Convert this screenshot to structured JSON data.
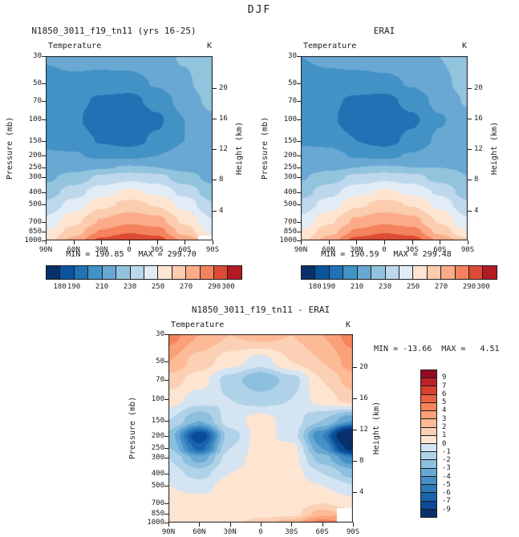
{
  "season": "DJF",
  "chart_data": [
    {
      "type": "heatmap",
      "panel": "model",
      "title": "N1850_3011_f19_tn11 (yrs 16-25)",
      "field_label": "Temperature",
      "units": "K",
      "ylabel_left": "Pressure (mb)",
      "ylabel_right": "Height (km)",
      "x_ticklabels": [
        "90N",
        "60N",
        "30N",
        "0",
        "30S",
        "60S",
        "90S"
      ],
      "pressure_levels": [
        30,
        50,
        70,
        100,
        150,
        200,
        250,
        300,
        400,
        500,
        700,
        850,
        1000
      ],
      "height_ticks_km": [
        20,
        16,
        12,
        8,
        4
      ],
      "min": 190.85,
      "max": 299.7,
      "minmax_text": "MIN = 190.85   MAX = 299.70",
      "contour_levels": [
        180,
        190,
        200,
        210,
        220,
        230,
        240,
        250,
        260,
        270,
        280,
        290,
        300
      ],
      "colorbar_ticklabels": [
        "180",
        "190",
        "210",
        "230",
        "250",
        "270",
        "290",
        "300"
      ],
      "colors": [
        "#08306b",
        "#0a549e",
        "#2171b5",
        "#4292c6",
        "#69a8d3",
        "#93c4de",
        "#bdd7ec",
        "#e1ecf7",
        "#fde5d2",
        "#fcccae",
        "#fcab89",
        "#f4835d",
        "#dc4b33",
        "#b21a24"
      ],
      "values": [
        [
          211,
          213,
          214,
          215,
          217,
          221,
          229
        ],
        [
          207,
          208,
          206,
          206,
          211,
          218,
          227
        ],
        [
          205,
          203,
          198,
          196,
          204,
          214,
          223
        ],
        [
          205,
          202,
          193,
          190.9,
          198,
          210,
          218
        ],
        [
          208,
          206,
          199,
          196,
          202,
          210,
          215
        ],
        [
          211,
          211,
          208,
          208,
          210,
          214,
          215
        ],
        [
          214,
          216,
          219,
          221,
          220,
          217,
          214
        ],
        [
          218,
          224,
          232,
          237,
          234,
          224,
          217
        ],
        [
          225,
          235,
          246,
          252,
          248,
          237,
          224
        ],
        [
          232,
          244,
          257,
          263,
          259,
          246,
          231
        ],
        [
          243,
          257,
          271,
          278,
          274,
          258,
          241
        ],
        [
          250,
          265,
          281,
          289,
          285,
          266,
          246
        ],
        [
          256,
          273,
          293,
          299.7,
          295,
          277,
          null
        ]
      ]
    },
    {
      "type": "heatmap",
      "panel": "reanalysis",
      "title": "ERAI",
      "field_label": "Temperature",
      "units": "K",
      "ylabel_left": "Pressure (mb)",
      "ylabel_right": "Height (km)",
      "x_ticklabels": [
        "90N",
        "60N",
        "30N",
        "0",
        "30S",
        "60S",
        "90S"
      ],
      "pressure_levels": [
        30,
        50,
        70,
        100,
        150,
        200,
        250,
        300,
        400,
        500,
        700,
        850,
        1000
      ],
      "height_ticks_km": [
        20,
        16,
        12,
        8,
        4
      ],
      "min": 190.59,
      "max": 299.48,
      "minmax_text": "MIN = 190.59   MAX = 299.48",
      "contour_levels": [
        180,
        190,
        200,
        210,
        220,
        230,
        240,
        250,
        260,
        270,
        280,
        290,
        300
      ],
      "colorbar_ticklabels": [
        "180",
        "190",
        "210",
        "230",
        "250",
        "270",
        "290",
        "300"
      ],
      "colors": [
        "#08306b",
        "#0a549e",
        "#2171b5",
        "#4292c6",
        "#69a8d3",
        "#93c4de",
        "#bdd7ec",
        "#e1ecf7",
        "#fde5d2",
        "#fcccae",
        "#fcab89",
        "#f4835d",
        "#dc4b33",
        "#b21a24"
      ],
      "values": [
        [
          210,
          212,
          214,
          216,
          217,
          220,
          226
        ],
        [
          206,
          207,
          206,
          207,
          211,
          217,
          224
        ],
        [
          204,
          202,
          198,
          196,
          204,
          213,
          221
        ],
        [
          204,
          202,
          193,
          190.6,
          198,
          209,
          217
        ],
        [
          209,
          208,
          200,
          196,
          203,
          212,
          217
        ],
        [
          213,
          213,
          209,
          208,
          211,
          217,
          219
        ],
        [
          216,
          218,
          220,
          221,
          220,
          220,
          219
        ],
        [
          219,
          225,
          233,
          237,
          234,
          226,
          220
        ],
        [
          226,
          236,
          247,
          252,
          248,
          238,
          225
        ],
        [
          233,
          245,
          258,
          263,
          259,
          247,
          232
        ],
        [
          244,
          258,
          272,
          278,
          274,
          259,
          242
        ],
        [
          251,
          266,
          282,
          289,
          285,
          267,
          250
        ],
        [
          257,
          274,
          294,
          299.5,
          295,
          278,
          262
        ]
      ]
    },
    {
      "type": "heatmap",
      "panel": "difference",
      "title": "N1850_3011_f19_tn11 - ERAI",
      "field_label": "Temperature",
      "units": "K",
      "ylabel_left": "Pressure (mb)",
      "ylabel_right": "Height (km)",
      "x_ticklabels": [
        "90N",
        "60N",
        "30N",
        "0",
        "30S",
        "60S",
        "90S"
      ],
      "pressure_levels": [
        30,
        50,
        70,
        100,
        150,
        200,
        250,
        300,
        400,
        500,
        700,
        850,
        1000
      ],
      "height_ticks_km": [
        20,
        16,
        12,
        8,
        4
      ],
      "min": -13.66,
      "max": 4.51,
      "minmax_text": "MIN = -13.66  MAX =   4.51",
      "contour_levels": [
        -9,
        -7,
        -6,
        -5,
        -4,
        -3,
        -2,
        -1,
        0,
        1,
        2,
        3,
        4,
        5,
        6,
        7,
        9
      ],
      "colorbar_ticklabels": [
        "9",
        "7",
        "6",
        "5",
        "4",
        "3",
        "2",
        "1",
        "0",
        "-1",
        "-2",
        "-3",
        "-4",
        "-5",
        "-6",
        "-7",
        "-9"
      ],
      "colors": [
        "#08306b",
        "#0a4b97",
        "#1a63ad",
        "#2e7bbc",
        "#4591c7",
        "#68a9d3",
        "#8dbfdf",
        "#b0d2e8",
        "#d4e4f2",
        "#fde5d2",
        "#fcd0b4",
        "#fcba96",
        "#fba179",
        "#f6835c",
        "#ea6243",
        "#d73f2f",
        "#bc2127",
        "#920c22"
      ],
      "values": [
        [
          4.5,
          3,
          2,
          2.5,
          2,
          3,
          4.5
        ],
        [
          3,
          1.5,
          0.5,
          -0.5,
          1,
          2,
          3.5
        ],
        [
          1.5,
          0.5,
          -1.5,
          -3,
          -1.5,
          1,
          2.5
        ],
        [
          0.5,
          -0.5,
          -1,
          -1.5,
          -1,
          0.5,
          1.5
        ],
        [
          -1,
          -3,
          -0.5,
          0.5,
          -0.5,
          -2,
          -4
        ],
        [
          -2.5,
          -8,
          -1.5,
          0.5,
          -0.5,
          -5,
          -13.7
        ],
        [
          -2,
          -6.5,
          -1,
          0.5,
          0.5,
          -4,
          -10
        ],
        [
          -1,
          -3.5,
          -0.5,
          0.5,
          0.5,
          -2.5,
          -5
        ],
        [
          -0.5,
          -1.5,
          0,
          0.5,
          0.5,
          -1,
          -2.5
        ],
        [
          0,
          -0.5,
          0.5,
          0.5,
          0.5,
          0,
          -1
        ],
        [
          0.5,
          0.5,
          0.5,
          0.5,
          0.5,
          1,
          0.5
        ],
        [
          1,
          0.5,
          0.5,
          0.5,
          0.5,
          2.5,
          null
        ],
        [
          1,
          1,
          0.5,
          1.5,
          2.5,
          4.5,
          null
        ]
      ]
    }
  ]
}
